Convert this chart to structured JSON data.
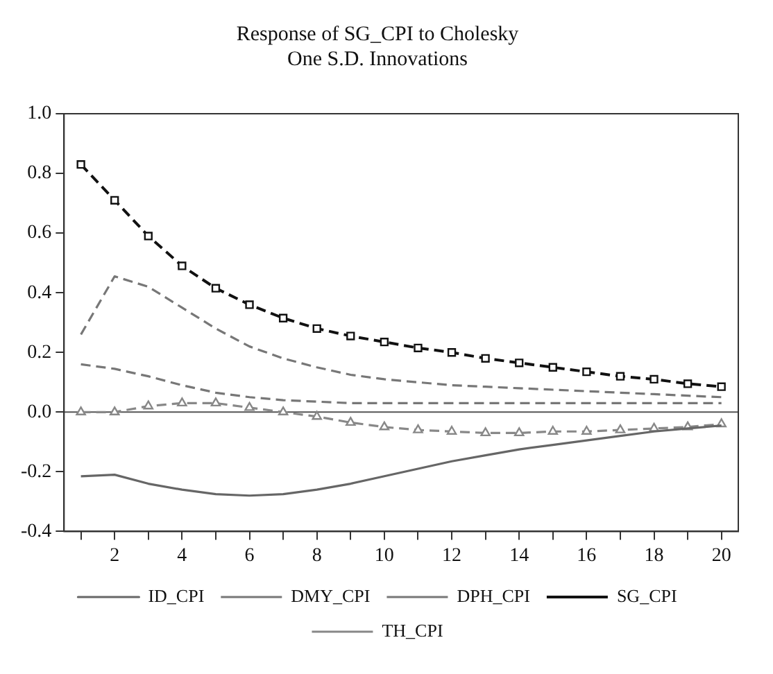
{
  "chart_data": {
    "type": "line",
    "title": "Response of SG_CPI to Cholesky\nOne S.D. Innovations",
    "x": [
      1,
      2,
      3,
      4,
      5,
      6,
      7,
      8,
      9,
      10,
      11,
      12,
      13,
      14,
      15,
      16,
      17,
      18,
      19,
      20
    ],
    "xlim": [
      0.5,
      20.5
    ],
    "xticks": [
      {
        "value": 1,
        "label": null
      },
      2,
      {
        "value": 3,
        "label": null
      },
      4,
      {
        "value": 5,
        "label": null
      },
      6,
      {
        "value": 7,
        "label": null
      },
      8,
      {
        "value": 9,
        "label": null
      },
      10,
      {
        "value": 11,
        "label": null
      },
      12,
      {
        "value": 13,
        "label": null
      },
      14,
      {
        "value": 15,
        "label": null
      },
      16,
      {
        "value": 17,
        "label": null
      },
      18,
      {
        "value": 19,
        "label": null
      },
      20
    ],
    "ylim": [
      -0.4,
      1.0
    ],
    "yticks": [
      {
        "value": -0.4,
        "label": "-0.4"
      },
      {
        "value": -0.2,
        "label": "-0.2"
      },
      {
        "value": 0,
        "label": "0.0"
      },
      {
        "value": 0.2,
        "label": "0.2"
      },
      {
        "value": 0.4,
        "label": "0.4"
      },
      {
        "value": 0.6,
        "label": "0.6"
      },
      {
        "value": 0.8,
        "label": "0.8"
      },
      {
        "value": 1.0,
        "label": "1.0"
      }
    ],
    "grid": false,
    "legend": "bottom",
    "ref_lines": [
      {
        "axis": "y",
        "value": 0,
        "color": "#555555",
        "line_style": "solid"
      }
    ],
    "series": [
      {
        "name": "ID_CPI",
        "color": "#666666",
        "line_style": "solid",
        "marker": "none",
        "values": [
          -0.215,
          -0.21,
          -0.24,
          -0.26,
          -0.275,
          -0.28,
          -0.275,
          -0.26,
          -0.24,
          -0.215,
          -0.19,
          -0.165,
          -0.145,
          -0.125,
          -0.11,
          -0.095,
          -0.08,
          -0.065,
          -0.055,
          -0.045
        ]
      },
      {
        "name": "DMY_CPI",
        "color": "#777777",
        "line_style": "dashed",
        "marker": "none",
        "values": [
          0.26,
          0.455,
          0.42,
          0.35,
          0.28,
          0.22,
          0.18,
          0.15,
          0.125,
          0.11,
          0.1,
          0.09,
          0.085,
          0.08,
          0.075,
          0.07,
          0.065,
          0.06,
          0.055,
          0.05
        ]
      },
      {
        "name": "DPH_CPI",
        "color": "#777777",
        "line_style": "dashed",
        "marker": "none",
        "values": [
          0.16,
          0.145,
          0.12,
          0.09,
          0.065,
          0.05,
          0.04,
          0.035,
          0.03,
          0.03,
          0.03,
          0.03,
          0.03,
          0.03,
          0.03,
          0.03,
          0.03,
          0.03,
          0.03,
          0.03
        ]
      },
      {
        "name": "SG_CPI",
        "color": "#111111",
        "line_style": "dashed",
        "marker": "square",
        "values": [
          0.83,
          0.71,
          0.59,
          0.49,
          0.415,
          0.36,
          0.315,
          0.28,
          0.255,
          0.235,
          0.215,
          0.2,
          0.18,
          0.165,
          0.15,
          0.135,
          0.12,
          0.11,
          0.095,
          0.085
        ]
      },
      {
        "name": "TH_CPI",
        "color": "#888888",
        "line_style": "dashed",
        "marker": "triangle",
        "values": [
          0,
          0,
          0.02,
          0.03,
          0.03,
          0.015,
          0,
          -0.015,
          -0.035,
          -0.05,
          -0.06,
          -0.065,
          -0.07,
          -0.07,
          -0.065,
          -0.065,
          -0.06,
          -0.055,
          -0.05,
          -0.04
        ]
      }
    ]
  }
}
